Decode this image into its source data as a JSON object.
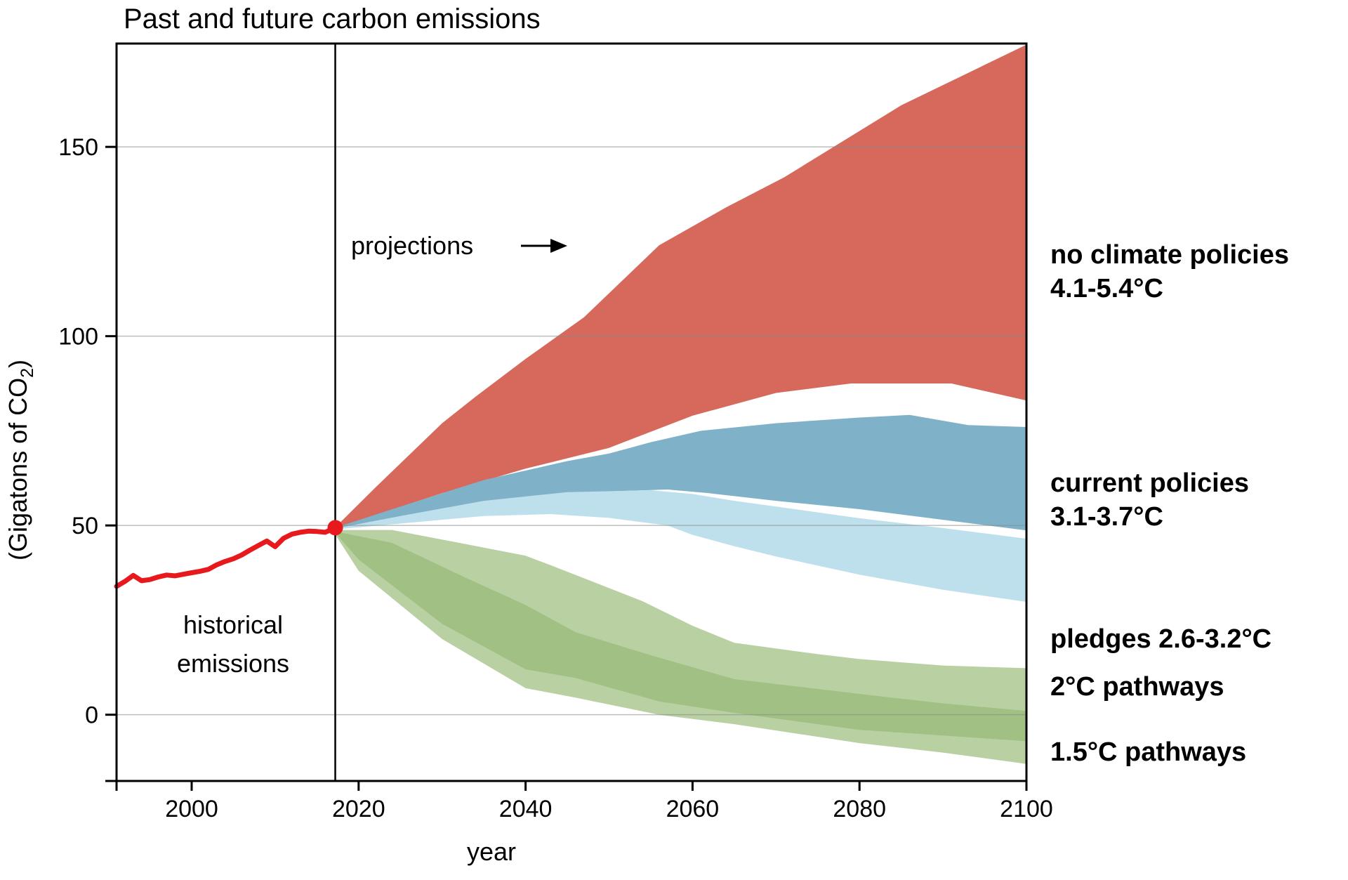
{
  "chart_data": {
    "type": "area",
    "title": "Past and future carbon emissions",
    "xlabel": "year",
    "ylabel": "(Gigatons of CO2)",
    "ylabel_parts": [
      "(Gigatons of CO",
      "2",
      ")"
    ],
    "xlim": [
      1991,
      2100
    ],
    "ylim": [
      -17.5,
      177.3
    ],
    "grid": "horizontal-only",
    "legend_position": "right-margin",
    "x_ticks": [
      {
        "value": 2000,
        "label": "2000"
      },
      {
        "value": 2020,
        "label": "2020"
      },
      {
        "value": 2040,
        "label": "2040"
      },
      {
        "value": 2060,
        "label": "2060"
      },
      {
        "value": 2080,
        "label": "2080"
      },
      {
        "value": 2100,
        "label": "2100"
      }
    ],
    "y_ticks": [
      {
        "value": 150,
        "label": "150"
      },
      {
        "value": 100,
        "label": "100"
      },
      {
        "value": 50,
        "label": "50"
      },
      {
        "value": 0,
        "label": "0"
      }
    ],
    "annotations": {
      "projections": "projections",
      "historical": [
        "historical",
        "emissions"
      ]
    },
    "historical": {
      "label": "historical emissions",
      "color": "#e8191c",
      "line_width": 7,
      "end_dot": [
        2017.2,
        49.4
      ],
      "points": [
        [
          1991,
          33.9
        ],
        [
          1992,
          35.2
        ],
        [
          1993,
          36.8
        ],
        [
          1994,
          35.4
        ],
        [
          1995,
          35.7
        ],
        [
          1996,
          36.4
        ],
        [
          1997,
          36.9
        ],
        [
          1998,
          36.7
        ],
        [
          1999,
          37.1
        ],
        [
          2000,
          37.5
        ],
        [
          2001,
          37.9
        ],
        [
          2002,
          38.4
        ],
        [
          2003,
          39.6
        ],
        [
          2004,
          40.5
        ],
        [
          2005,
          41.2
        ],
        [
          2006,
          42.2
        ],
        [
          2007,
          43.5
        ],
        [
          2008,
          44.7
        ],
        [
          2009,
          45.9
        ],
        [
          2010,
          44.4
        ],
        [
          2011,
          46.6
        ],
        [
          2012,
          47.7
        ],
        [
          2013,
          48.2
        ],
        [
          2014,
          48.5
        ],
        [
          2015,
          48.4
        ],
        [
          2016,
          48.2
        ],
        [
          2017.2,
          49.4
        ]
      ]
    },
    "projection_divider_year": 2017.2,
    "bands": [
      {
        "id": "no-climate-policies",
        "label_lines": [
          "no climate policies",
          "4.1-5.4°C"
        ],
        "color": "#d6695c",
        "opacity": 1,
        "top": [
          [
            2017.2,
            49.5
          ],
          [
            2022,
            60
          ],
          [
            2030,
            77
          ],
          [
            2034,
            84
          ],
          [
            2040,
            94
          ],
          [
            2047,
            105
          ],
          [
            2056,
            124
          ],
          [
            2064,
            134
          ],
          [
            2071,
            142
          ],
          [
            2085,
            161
          ],
          [
            2100,
            177
          ]
        ],
        "bottom": [
          [
            2017.2,
            49.3
          ],
          [
            2030,
            58.5
          ],
          [
            2040,
            65
          ],
          [
            2050,
            70.5
          ],
          [
            2060,
            79
          ],
          [
            2070,
            85
          ],
          [
            2079,
            87.5
          ],
          [
            2091,
            87.5
          ],
          [
            2100,
            83
          ]
        ]
      },
      {
        "id": "current-policies",
        "label_lines": [
          "current policies",
          "3.1-3.7°C"
        ],
        "color": "#7fb2c9",
        "opacity": 1,
        "top": [
          [
            2017.2,
            49.4
          ],
          [
            2025,
            55
          ],
          [
            2035,
            62
          ],
          [
            2045,
            67
          ],
          [
            2050,
            69
          ],
          [
            2055,
            72
          ],
          [
            2061,
            75
          ],
          [
            2070,
            77
          ],
          [
            2080,
            78.5
          ],
          [
            2086,
            79.2
          ],
          [
            2093,
            76.5
          ],
          [
            2100,
            76
          ]
        ],
        "bottom": [
          [
            2017.2,
            49.2
          ],
          [
            2030,
            53
          ],
          [
            2040,
            57
          ],
          [
            2050,
            59
          ],
          [
            2057,
            59.5
          ],
          [
            2062,
            58.5
          ],
          [
            2070,
            56.5
          ],
          [
            2080,
            54.3
          ],
          [
            2090,
            51.5
          ],
          [
            2100,
            48.7
          ]
        ]
      },
      {
        "id": "pledges",
        "label_lines": [
          "pledges 2.6-3.2°C"
        ],
        "color": "#bedfec",
        "opacity": 1,
        "top": [
          [
            2017.2,
            49.2
          ],
          [
            2025,
            52.5
          ],
          [
            2035,
            56.5
          ],
          [
            2045,
            58.8
          ],
          [
            2055,
            59.3
          ],
          [
            2060,
            58.3
          ],
          [
            2065,
            56.5
          ],
          [
            2070,
            55
          ],
          [
            2080,
            51.9
          ],
          [
            2090,
            49.3
          ],
          [
            2100,
            46.5
          ]
        ],
        "bottom": [
          [
            2017.2,
            49.0
          ],
          [
            2025,
            50.5
          ],
          [
            2035,
            52.5
          ],
          [
            2043,
            53
          ],
          [
            2050,
            52
          ],
          [
            2057,
            50
          ],
          [
            2060,
            47.5
          ],
          [
            2065,
            44.5
          ],
          [
            2070,
            41.8
          ],
          [
            2080,
            37
          ],
          [
            2090,
            33
          ],
          [
            2100,
            29.8
          ]
        ]
      },
      {
        "id": "two-degree-pathways",
        "label_lines": [
          "2°C pathways"
        ],
        "color": "#94b874",
        "opacity": 0.66,
        "top": [
          [
            2017.2,
            48.8
          ],
          [
            2024,
            48.8
          ],
          [
            2033,
            45
          ],
          [
            2040,
            42
          ],
          [
            2043,
            39.5
          ],
          [
            2054,
            30
          ],
          [
            2060,
            23.5
          ],
          [
            2065,
            19
          ],
          [
            2075,
            16
          ],
          [
            2080,
            14.7
          ],
          [
            2090,
            13
          ],
          [
            2100,
            12.3
          ]
        ],
        "bottom": [
          [
            2017.2,
            48.0
          ],
          [
            2020,
            41
          ],
          [
            2030,
            24
          ],
          [
            2040,
            12
          ],
          [
            2046,
            9.7
          ],
          [
            2056,
            3.5
          ],
          [
            2065,
            0.5
          ],
          [
            2080,
            -4
          ],
          [
            2090,
            -5.5
          ],
          [
            2100,
            -7
          ]
        ]
      },
      {
        "id": "one-point-five-degree-pathways",
        "label_lines": [
          "1.5°C pathways"
        ],
        "color": "#94b874",
        "opacity": 0.66,
        "top": [
          [
            2017.2,
            48.4
          ],
          [
            2024,
            45.4
          ],
          [
            2033,
            36
          ],
          [
            2040,
            29
          ],
          [
            2046,
            21.8
          ],
          [
            2055,
            15.7
          ],
          [
            2065,
            9.4
          ],
          [
            2080,
            5.5
          ],
          [
            2090,
            3
          ],
          [
            2100,
            1
          ]
        ],
        "bottom": [
          [
            2017.2,
            47.6
          ],
          [
            2020,
            38
          ],
          [
            2030,
            20
          ],
          [
            2040,
            7
          ],
          [
            2046,
            4.5
          ],
          [
            2056,
            0
          ],
          [
            2065,
            -2.5
          ],
          [
            2080,
            -7.5
          ],
          [
            2090,
            -10
          ],
          [
            2100,
            -13
          ]
        ]
      }
    ],
    "colors": {
      "axis": "#000000",
      "gridline": "#888888",
      "historical_line": "#e8191c"
    }
  }
}
